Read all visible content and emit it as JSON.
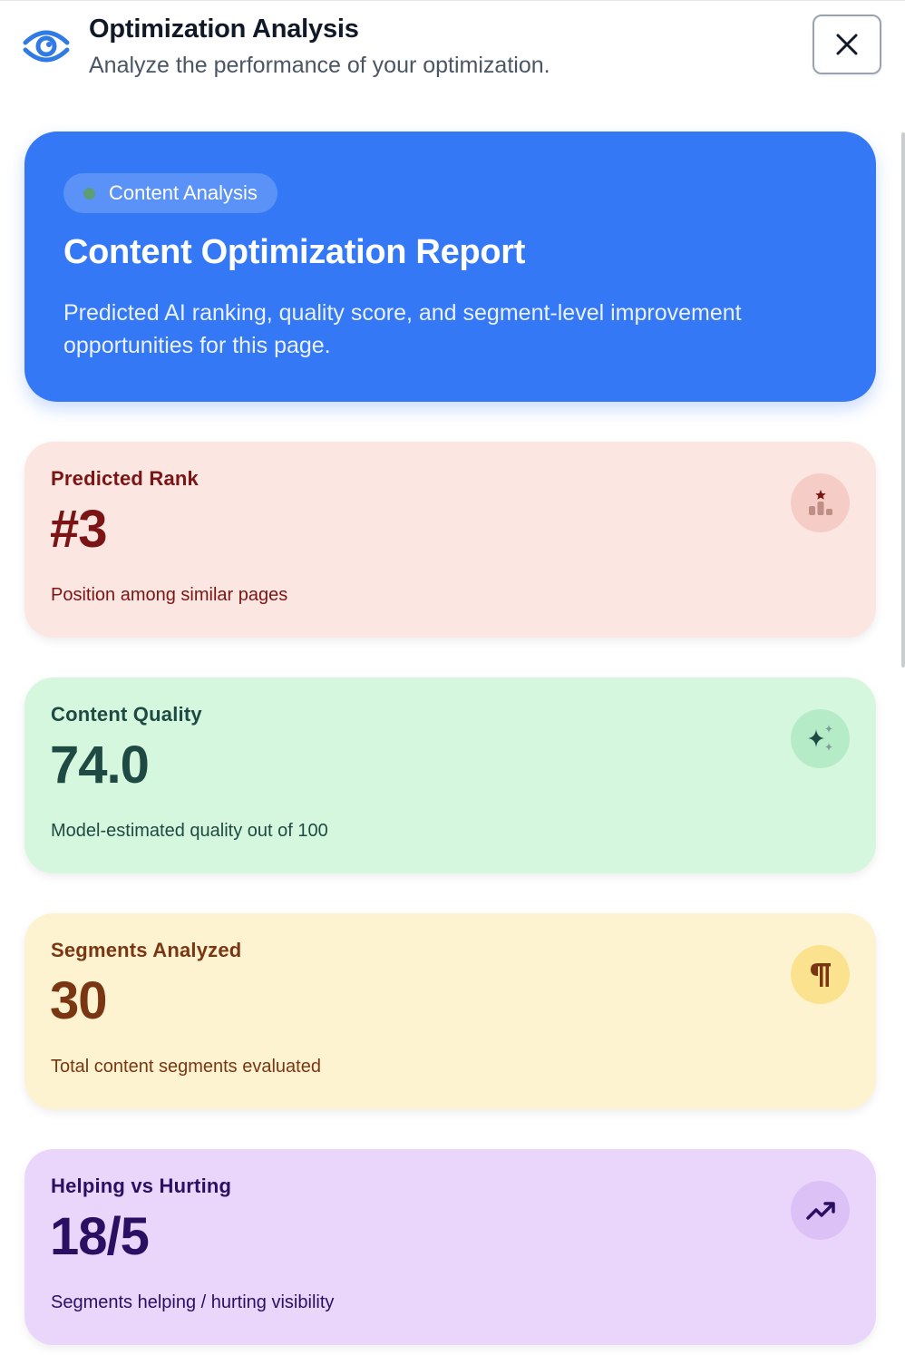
{
  "header": {
    "title": "Optimization Analysis",
    "subtitle": "Analyze the performance of your optimization.",
    "logo_icon": "eye-icon",
    "close_icon": "close-icon"
  },
  "hero": {
    "badge": "Content Analysis",
    "title": "Content Optimization Report",
    "description": "Predicted AI ranking, quality score, and segment-level improvement opportunities for this page.",
    "background_color": "#3478f6"
  },
  "cards": [
    {
      "id": "rank",
      "label": "Predicted Rank",
      "value": "#3",
      "description": "Position among similar pages",
      "icon": "podium-icon",
      "bg": "#fce6e1",
      "color": "#7b1515"
    },
    {
      "id": "quality",
      "label": "Content Quality",
      "value": "74.0",
      "description": "Model-estimated quality out of 100",
      "icon": "sparkles-icon",
      "bg": "#d4f7dd",
      "color": "#1f4a44"
    },
    {
      "id": "segments",
      "label": "Segments Analyzed",
      "value": "30",
      "description": "Total content segments evaluated",
      "icon": "pilcrow-icon",
      "bg": "#fdf3d1",
      "color": "#7a3612"
    },
    {
      "id": "helping",
      "label": "Helping vs Hurting",
      "value": "18/5",
      "description": "Segments helping / hurting visibility",
      "icon": "trending-up-icon",
      "bg": "#ead6fb",
      "color": "#2a0f63"
    }
  ]
}
